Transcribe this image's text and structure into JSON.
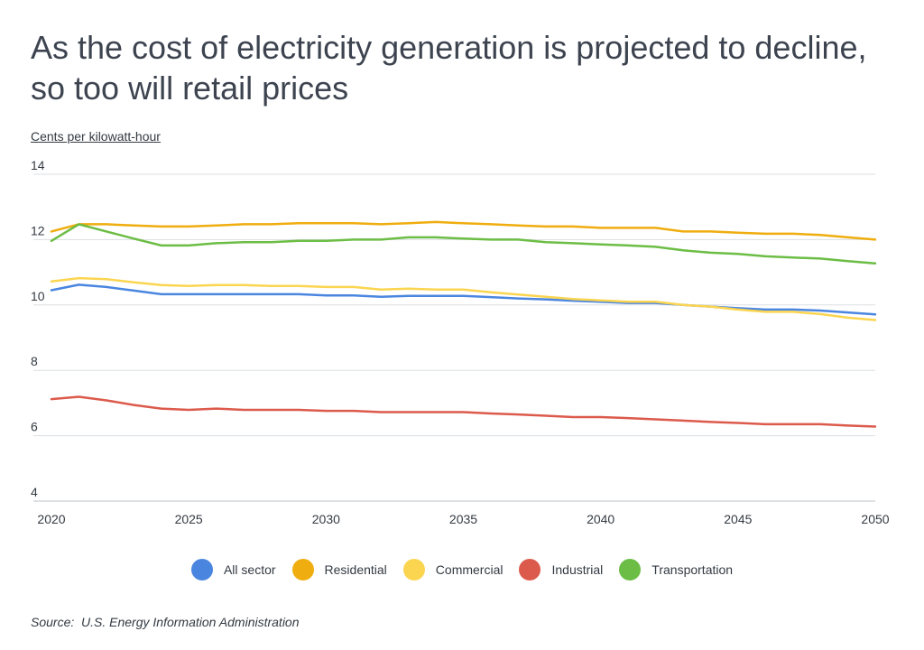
{
  "title": "As the cost of electricity generation is projected to decline, so too will retail prices",
  "unit_label": "Cents per kilowatt-hour",
  "source_label": "Source:",
  "source_text": "U.S. Energy Information Administration",
  "chart_data": {
    "type": "line",
    "title": "As the cost of electricity generation is projected to decline, so too will retail prices",
    "ylabel": "Cents per kilowatt-hour",
    "xlabel": "",
    "x": [
      2020,
      2021,
      2022,
      2023,
      2024,
      2025,
      2026,
      2027,
      2028,
      2029,
      2030,
      2031,
      2032,
      2033,
      2034,
      2035,
      2036,
      2037,
      2038,
      2039,
      2040,
      2041,
      2042,
      2043,
      2044,
      2045,
      2046,
      2047,
      2048,
      2049,
      2050
    ],
    "xticks": [
      2020,
      2025,
      2030,
      2035,
      2040,
      2045,
      2050
    ],
    "ylim": [
      4,
      14
    ],
    "yticks": [
      4,
      6,
      8,
      10,
      12,
      14
    ],
    "grid": true,
    "legend_position": "bottom",
    "series": [
      {
        "name": "All sector",
        "color": "#4a86e0",
        "values": [
          10.45,
          10.62,
          10.55,
          10.44,
          10.33,
          10.33,
          10.33,
          10.33,
          10.33,
          10.33,
          10.29,
          10.29,
          10.25,
          10.28,
          10.28,
          10.28,
          10.24,
          10.2,
          10.17,
          10.13,
          10.1,
          10.06,
          10.06,
          10.0,
          9.95,
          9.9,
          9.86,
          9.86,
          9.83,
          9.77,
          9.71
        ]
      },
      {
        "name": "Residential",
        "color": "#efad0f",
        "values": [
          12.25,
          12.47,
          12.47,
          12.43,
          12.4,
          12.4,
          12.43,
          12.47,
          12.47,
          12.5,
          12.5,
          12.5,
          12.47,
          12.5,
          12.54,
          12.5,
          12.47,
          12.43,
          12.4,
          12.4,
          12.36,
          12.36,
          12.36,
          12.25,
          12.25,
          12.21,
          12.18,
          12.18,
          12.14,
          12.07,
          12.0
        ]
      },
      {
        "name": "Commercial",
        "color": "#fbd550",
        "values": [
          10.72,
          10.82,
          10.79,
          10.69,
          10.61,
          10.58,
          10.61,
          10.61,
          10.58,
          10.58,
          10.55,
          10.55,
          10.47,
          10.5,
          10.47,
          10.47,
          10.39,
          10.32,
          10.25,
          10.18,
          10.14,
          10.1,
          10.1,
          10.0,
          9.95,
          9.86,
          9.79,
          9.79,
          9.72,
          9.61,
          9.54
        ]
      },
      {
        "name": "Industrial",
        "color": "#dc5a4b",
        "values": [
          7.12,
          7.19,
          7.08,
          6.94,
          6.83,
          6.79,
          6.83,
          6.79,
          6.79,
          6.79,
          6.76,
          6.76,
          6.72,
          6.72,
          6.72,
          6.72,
          6.68,
          6.65,
          6.61,
          6.57,
          6.57,
          6.54,
          6.5,
          6.46,
          6.42,
          6.39,
          6.35,
          6.35,
          6.35,
          6.31,
          6.28
        ]
      },
      {
        "name": "Transportation",
        "color": "#6cbd45",
        "values": [
          11.96,
          12.47,
          12.25,
          12.03,
          11.82,
          11.82,
          11.89,
          11.92,
          11.92,
          11.96,
          11.96,
          12.0,
          12.0,
          12.07,
          12.07,
          12.03,
          12.0,
          12.0,
          11.92,
          11.89,
          11.85,
          11.82,
          11.78,
          11.67,
          11.6,
          11.56,
          11.49,
          11.45,
          11.42,
          11.34,
          11.27
        ]
      }
    ]
  }
}
